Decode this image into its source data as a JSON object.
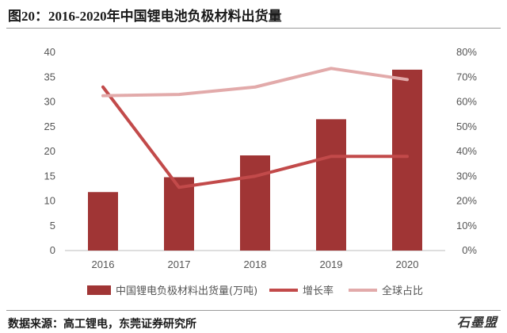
{
  "title": "图20：2016-2020年中国锂电池负极材料出货量",
  "source": "数据来源：高工锂电，东莞证券研究所",
  "watermark": "石墨盟",
  "chart_data": {
    "type": "bar",
    "categories": [
      "2016",
      "2017",
      "2018",
      "2019",
      "2020"
    ],
    "series": [
      {
        "name": "中国锂电负极材料出货量(万吨)",
        "type": "bar",
        "axis": "left",
        "values": [
          11.8,
          14.8,
          19.2,
          26.5,
          36.5
        ],
        "color": "#a03535"
      },
      {
        "name": "增长率",
        "type": "line",
        "axis": "right",
        "values": [
          0.66,
          0.255,
          0.3,
          0.38,
          0.38
        ],
        "color": "#c24a4a"
      },
      {
        "name": "全球占比",
        "type": "line",
        "axis": "right",
        "values": [
          0.625,
          0.63,
          0.66,
          0.735,
          0.69
        ],
        "color": "#e2aaaa"
      }
    ],
    "ylim_left": [
      0,
      40
    ],
    "yticks_left": [
      "0",
      "5",
      "10",
      "15",
      "20",
      "25",
      "30",
      "35",
      "40"
    ],
    "ylim_right": [
      0,
      0.8
    ],
    "yticks_right": [
      "0%",
      "10%",
      "20%",
      "30%",
      "40%",
      "50%",
      "60%",
      "70%",
      "80%"
    ],
    "grid": false,
    "legend_position": "bottom"
  }
}
